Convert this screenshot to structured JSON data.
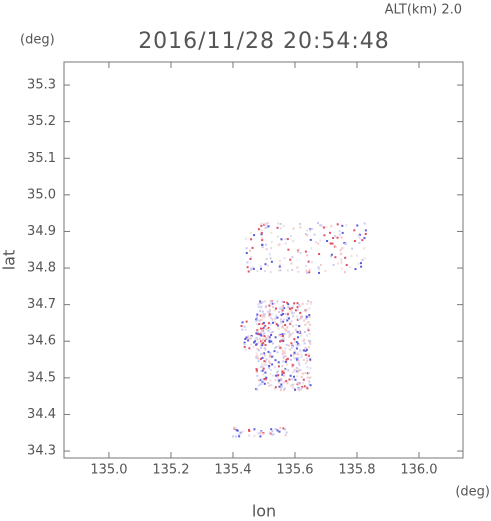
{
  "chart_data": {
    "type": "map",
    "title": "2016/11/28 20:54:48",
    "subtitle": "ALT(km) 2.0",
    "y_unit": "(deg)",
    "x_unit": "(deg)",
    "ylabel": "lat",
    "xlabel": "lon",
    "xlim": [
      134.855,
      136.142
    ],
    "ylim": [
      34.281,
      35.363
    ],
    "xticks": [
      {
        "value": 135.0,
        "label": "135.0"
      },
      135.2,
      135.4,
      135.6,
      135.8,
      {
        "value": 136.0,
        "label": "136.0"
      }
    ],
    "yticks": [
      34.3,
      34.4,
      34.5,
      34.6,
      34.7,
      34.8,
      34.9,
      {
        "value": 35.0,
        "label": "35.0"
      },
      35.1,
      35.2,
      35.3
    ]
  }
}
